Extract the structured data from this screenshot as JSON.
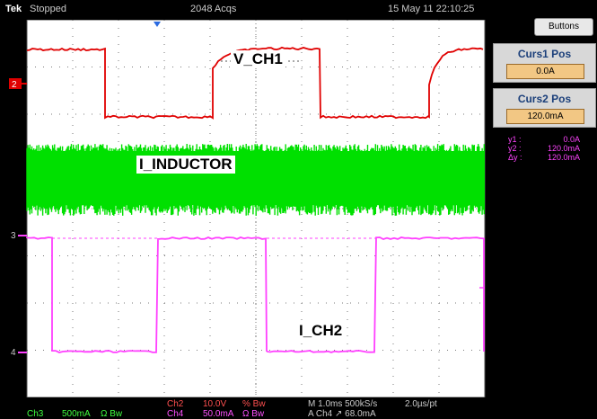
{
  "topbar": {
    "brand": "Tek",
    "status": "Stopped",
    "acquisitions": "2048 Acqs",
    "datetime": "15 May 11 22:10:25"
  },
  "panel": {
    "buttons_label": "Buttons",
    "curs1": {
      "title": "Curs1 Pos",
      "value": "0.0A"
    },
    "curs2": {
      "title": "Curs2 Pos",
      "value": "120.0mA"
    },
    "readouts": [
      {
        "name": "y1 :",
        "value": "0.0A"
      },
      {
        "name": "y2 :",
        "value": "120.0mA"
      },
      {
        "name": "Δy :",
        "value": "120.0mA"
      }
    ]
  },
  "markers": {
    "ch2": "2",
    "ch3": "3",
    "ch4": "4"
  },
  "labels": {
    "v_ch1": "V_CH1",
    "i_inductor": "I_INDUCTOR",
    "i_ch2": "I_CH2"
  },
  "bottombar": {
    "ch2_label": "Ch2",
    "ch2_scale": "10.0V",
    "ch2_suffix": "% Bw",
    "ch4_label": "Ch4",
    "ch4_scale": "50.0mA",
    "ch4_suffix": "Ω Bw",
    "timebase": "M 1.0ms 500kS/s",
    "resolution": "2.0µs/pt",
    "trigger": "A Ch4 ↗ 68.0mA",
    "ch3_label": "Ch3",
    "ch3_scale": "500mA",
    "ch3_suffix": "Ω Bw"
  },
  "colors": {
    "ch2": "#e00000",
    "ch3": "#00e000",
    "ch4": "#ff40ff",
    "grid": "#7a7a7a"
  }
}
